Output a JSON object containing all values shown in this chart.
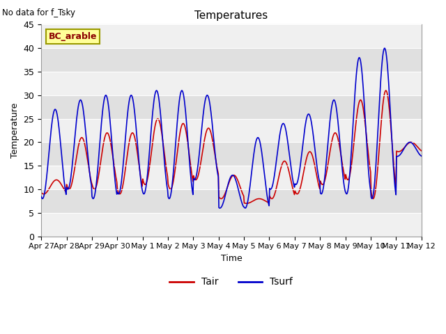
{
  "title": "Temperatures",
  "xlabel": "Time",
  "ylabel": "Temperature",
  "note": "No data for f_Tsky",
  "site_label": "BC_arable",
  "ylim": [
    0,
    45
  ],
  "yticks": [
    0,
    5,
    10,
    15,
    20,
    25,
    30,
    35,
    40,
    45
  ],
  "x_tick_labels": [
    "Apr 27",
    "Apr 28",
    "Apr 29",
    "Apr 30",
    "May 1",
    "May 2",
    "May 3",
    "May 4",
    "May 5",
    "May 6",
    "May 7",
    "May 8",
    "May 9",
    "May 10",
    "May 11",
    "May 12"
  ],
  "line_color_tair": "#cc0000",
  "line_color_tsurf": "#0000cc",
  "bg_color": "#e0e0e0",
  "strip_color": "#f0f0f0",
  "legend_labels": [
    "Tair",
    "Tsurf"
  ],
  "figsize": [
    6.4,
    4.8
  ],
  "dpi": 100,
  "day_peaks_tair": [
    12,
    21,
    22,
    22,
    25,
    24,
    23,
    13,
    8,
    16,
    18,
    22,
    29,
    31,
    20
  ],
  "day_mins_tair": [
    9,
    10,
    10,
    9,
    11,
    10,
    12,
    8,
    7,
    8,
    9,
    11,
    12,
    8,
    18
  ],
  "day_peaks_tsurf": [
    27,
    29,
    30,
    30,
    31,
    31,
    30,
    13,
    21,
    24,
    26,
    29,
    38,
    40,
    20
  ],
  "day_mins_tsurf": [
    8,
    10,
    8,
    9,
    9,
    8,
    12,
    6,
    6,
    10,
    11,
    9,
    9,
    8,
    17
  ]
}
